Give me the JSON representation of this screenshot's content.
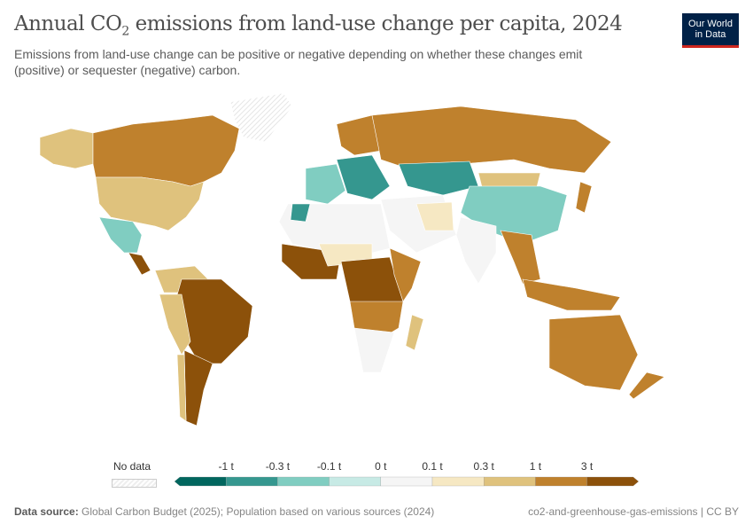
{
  "header": {
    "title_pre": "Annual CO",
    "title_sub": "2",
    "title_post": " emissions from land-use change per capita, 2024",
    "subtitle": "Emissions from land-use change can be positive or negative depending on whether these changes emit (positive) or sequester (negative) carbon.",
    "logo_line1": "Our World",
    "logo_line2": "in Data"
  },
  "legend": {
    "no_data_label": "No data",
    "tick_labels": [
      "-1 t",
      "-0.3 t",
      "-0.1 t",
      "0 t",
      "0.1 t",
      "0.3 t",
      "1 t",
      "3 t"
    ],
    "bin_colors": [
      "#01665e",
      "#35978f",
      "#80cdc1",
      "#c7eae5",
      "#f5f5f5",
      "#f6e8c3",
      "#dfc27d",
      "#bf812d",
      "#8c510a"
    ]
  },
  "map_regions": [
    {
      "name": "Canada",
      "bin": 7
    },
    {
      "name": "United States",
      "bin": 6
    },
    {
      "name": "Mexico",
      "bin": 2
    },
    {
      "name": "Greenland",
      "bin": null
    },
    {
      "name": "Brazil",
      "bin": 8
    },
    {
      "name": "Argentina",
      "bin": 6
    },
    {
      "name": "Russia",
      "bin": 7
    },
    {
      "name": "China",
      "bin": 2
    },
    {
      "name": "Kazakhstan",
      "bin": 1
    },
    {
      "name": "India",
      "bin": 4
    },
    {
      "name": "Australia",
      "bin": 7
    },
    {
      "name": "Indonesia",
      "bin": 7
    },
    {
      "name": "DR Congo",
      "bin": 8
    },
    {
      "name": "South Africa",
      "bin": 4
    },
    {
      "name": "Mongolia",
      "bin": 6
    },
    {
      "name": "Algeria",
      "bin": 4
    },
    {
      "name": "Iran",
      "bin": 4
    }
  ],
  "footer": {
    "source_label": "Data source:",
    "source_text": " Global Carbon Budget (2025); Population based on various sources (2024)",
    "right_text": "co2-and-greenhouse-gas-emissions | CC BY"
  }
}
